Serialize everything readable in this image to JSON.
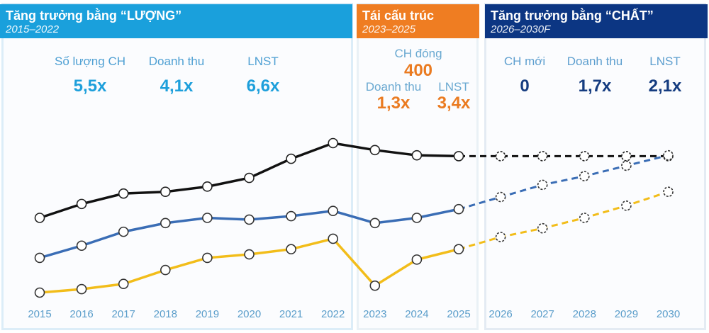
{
  "sections": [
    {
      "title": "Tăng trưởng bằng “LƯỢNG”",
      "period": "2015–2022",
      "color": "#1aa0dc"
    },
    {
      "title": "Tái cấu trúc",
      "period": "2023–2025",
      "color": "#ef7d22"
    },
    {
      "title": "Tăng trưởng bằng “CHẤT”",
      "period": "2026–2030F",
      "color": "#0c3683"
    }
  ],
  "stats": {
    "a": [
      {
        "label": "Số lượng CH",
        "value": "5,5x"
      },
      {
        "label": "Doanh thu",
        "value": "4,1x"
      },
      {
        "label": "LNST",
        "value": "6,6x"
      }
    ],
    "b": {
      "closed_label": "CH đóng",
      "closed_value": "400",
      "rev_label": "Doanh thu",
      "rev_value": "1,3x",
      "np_label": "LNST",
      "np_value": "3,4x"
    },
    "c": [
      {
        "label": "CH mới",
        "value": "0"
      },
      {
        "label": "Doanh thu",
        "value": "1,7x"
      },
      {
        "label": "LNST",
        "value": "2,1x"
      }
    ]
  },
  "chart_data": {
    "type": "line",
    "categories": [
      "2015",
      "2016",
      "2017",
      "2018",
      "2019",
      "2020",
      "2021",
      "2022",
      "2023",
      "2024",
      "2025",
      "2026",
      "2027",
      "2028",
      "2029",
      "2030"
    ],
    "forecast_from_index": 10,
    "series": [
      {
        "color": "#111111",
        "values": [
          38,
          46,
          52,
          53,
          56,
          61,
          72,
          81,
          77,
          74,
          73.5,
          73.5,
          73.5,
          73.5,
          73.5,
          73.5
        ]
      },
      {
        "color": "#3a6db5",
        "values": [
          15,
          22,
          30,
          35,
          38,
          37,
          39,
          42,
          35,
          38,
          43,
          50,
          57,
          62,
          68,
          74
        ]
      },
      {
        "color": "#f2bd1a",
        "values": [
          -5,
          -3,
          0,
          8,
          15,
          17,
          20,
          26,
          -1,
          14,
          20,
          27,
          32,
          38,
          45,
          53
        ]
      }
    ],
    "ylim": [
      -5,
      81
    ],
    "grid": false,
    "legend": "none"
  }
}
